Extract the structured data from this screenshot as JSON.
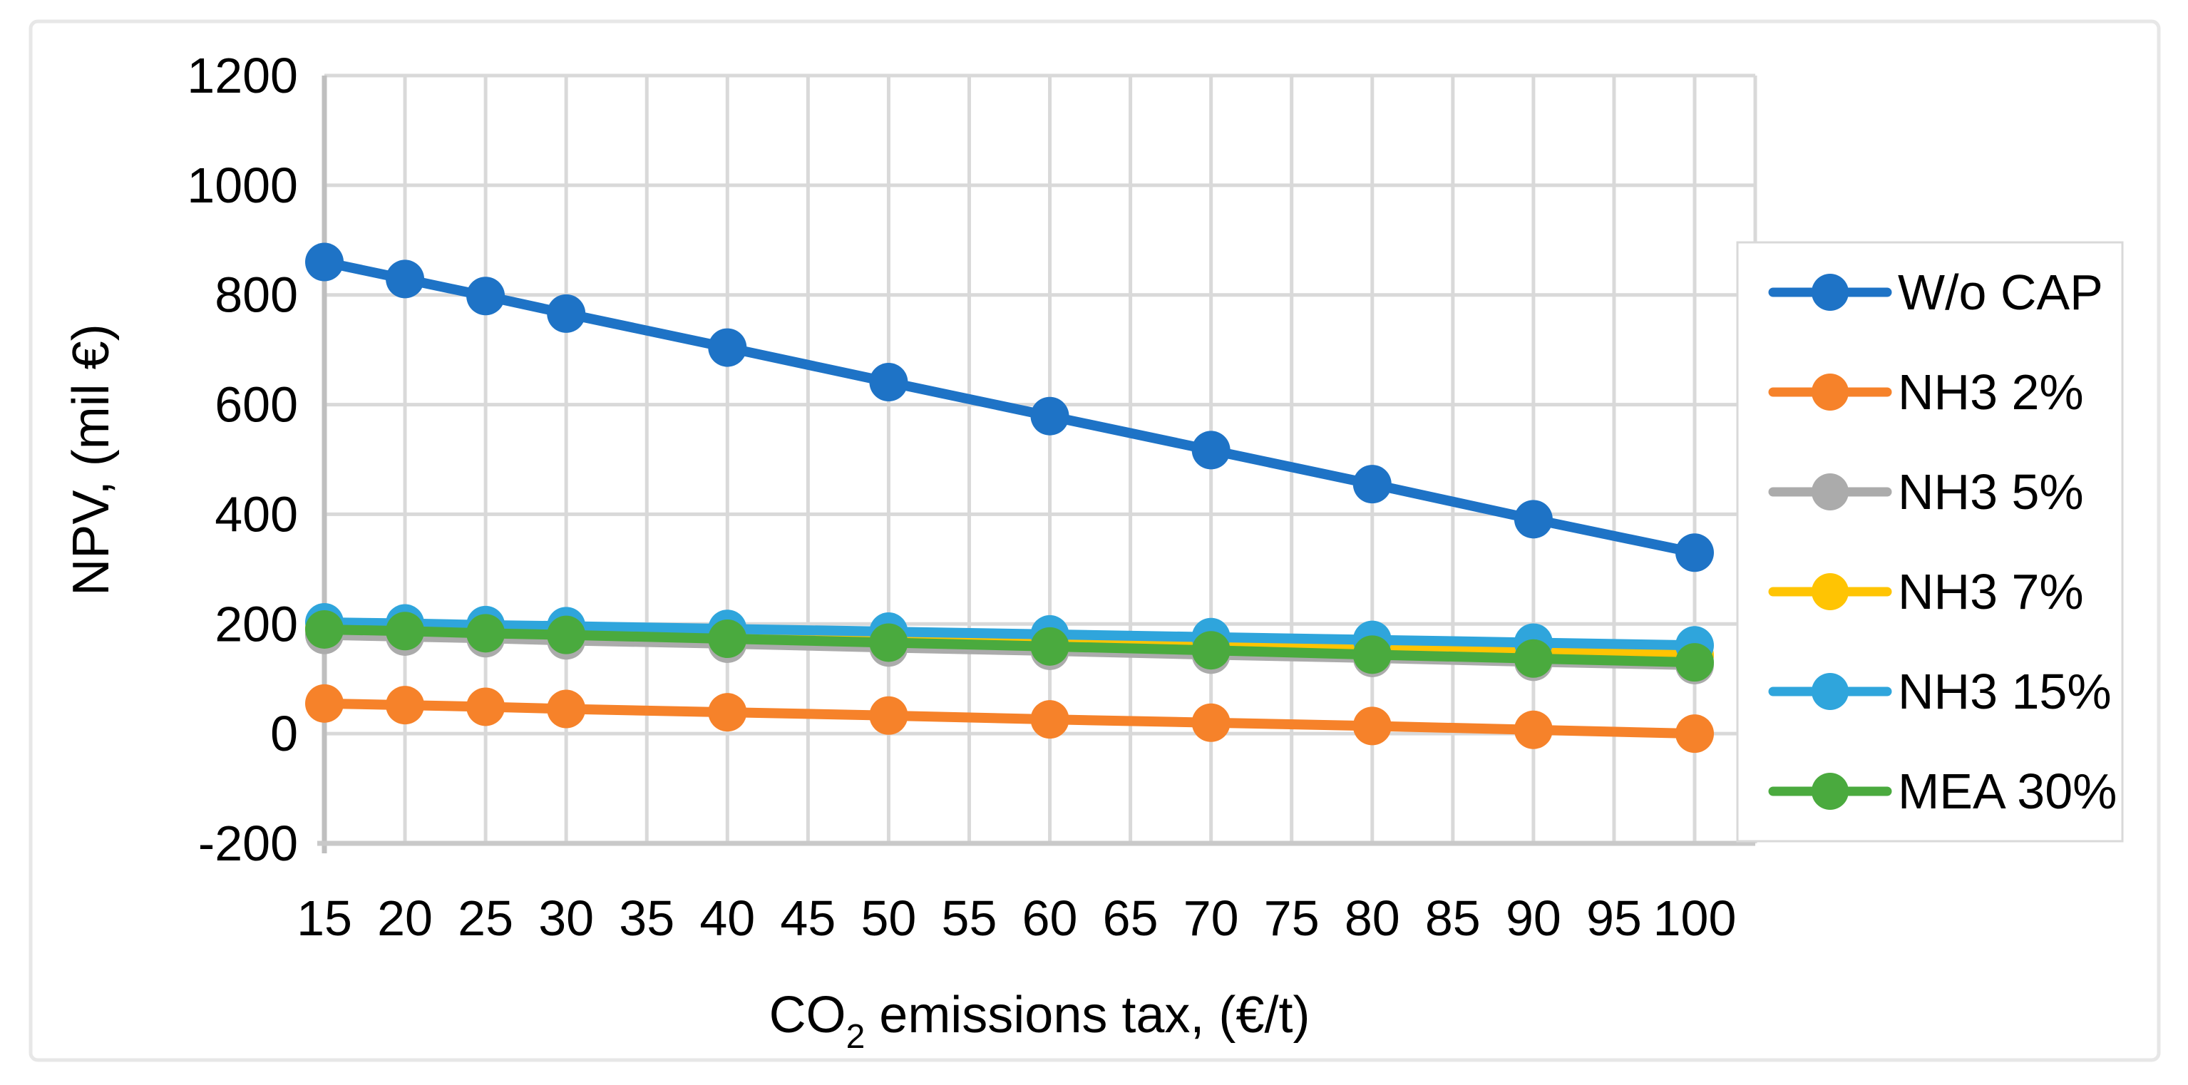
{
  "figure": {
    "background": "#FFFFFF",
    "border_color": "#E7E7E7",
    "grid_color": "#D9D9D9",
    "axis_line_color": "#BFBFBF",
    "bottom_axis_color": "#C9C9C9",
    "legend_border_color": "#D9D9D9"
  },
  "chart_data": {
    "type": "line",
    "title": "",
    "xlabel_prefix": "CO",
    "xlabel_sub": "2",
    "xlabel_rest": " emissions tax, (€/t)",
    "ylabel": "NPV, (mil €)",
    "x_ticks": [
      15,
      20,
      25,
      30,
      35,
      40,
      45,
      50,
      55,
      60,
      65,
      70,
      75,
      80,
      85,
      90,
      95,
      100
    ],
    "y_ticks": [
      1200,
      1000,
      800,
      600,
      400,
      200,
      0,
      -200
    ],
    "xlim": [
      15,
      103.8
    ],
    "ylim": [
      -200,
      1200
    ],
    "grid": true,
    "legend_position": "right",
    "x": [
      15,
      20,
      25,
      30,
      40,
      50,
      60,
      70,
      80,
      90,
      100
    ],
    "series": [
      {
        "name": "W/o CAP",
        "color": "#1E73C6",
        "values": [
          860,
          829,
          798,
          766,
          704,
          641,
          579,
          517,
          455,
          391,
          330
        ]
      },
      {
        "name": "NH3 2%",
        "color": "#F6822A",
        "values": [
          55,
          52,
          49,
          45,
          39,
          33,
          26,
          20,
          14,
          7,
          0
        ]
      },
      {
        "name": "NH3 5%",
        "color": "#ABABAB",
        "values": [
          180,
          177,
          174,
          170,
          164,
          157,
          151,
          144,
          138,
          131,
          125
        ]
      },
      {
        "name": "NH3 7%",
        "color": "#FFC403",
        "values": [
          192,
          189,
          186,
          183,
          178,
          172,
          166,
          160,
          155,
          149,
          143
        ]
      },
      {
        "name": "NH3 15%",
        "color": "#2FA5DC",
        "values": [
          203,
          201,
          198,
          196,
          191,
          186,
          181,
          176,
          171,
          166,
          161
        ]
      },
      {
        "name": "MEA 30%",
        "color": "#4AAA3E",
        "values": [
          190,
          187,
          183,
          180,
          173,
          166,
          159,
          152,
          144,
          137,
          130
        ]
      }
    ]
  }
}
